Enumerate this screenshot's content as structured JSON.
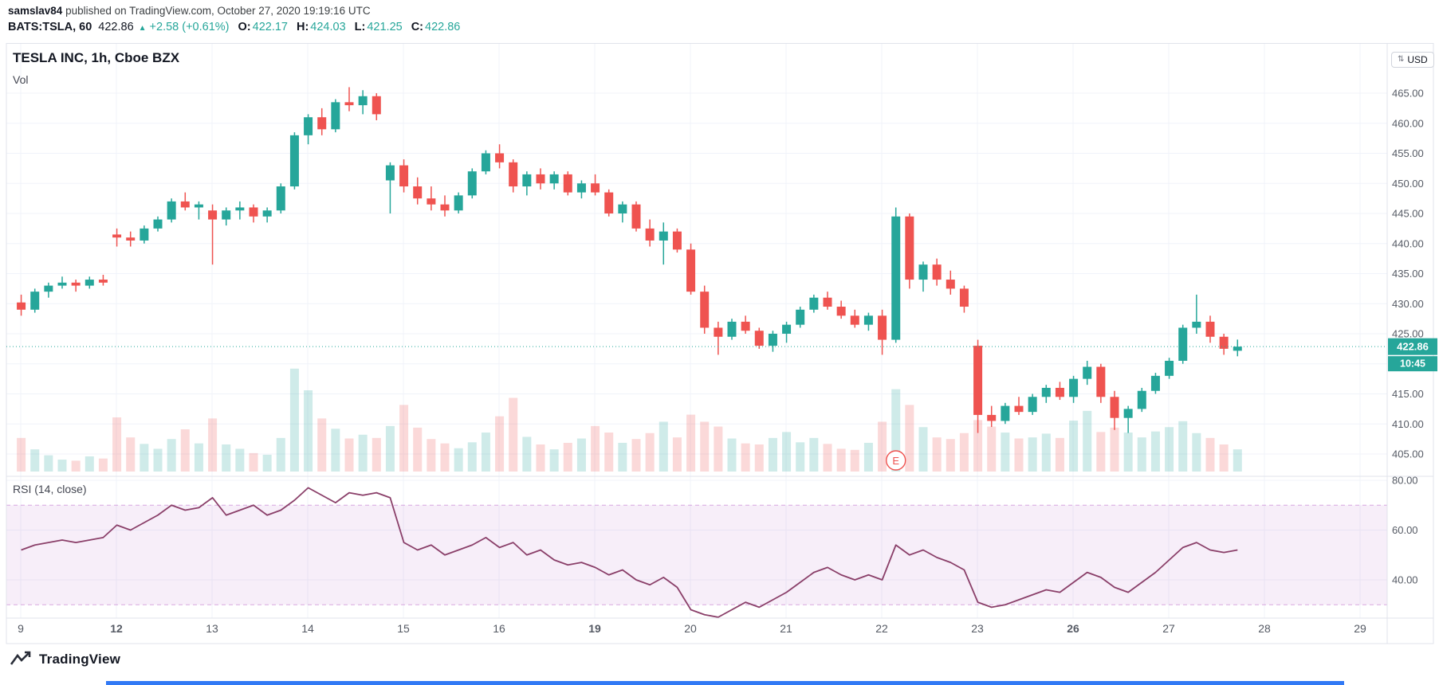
{
  "header": {
    "publisher": "samslav84",
    "published_text": "published on TradingView.com, October 27, 2020 19:19:16 UTC",
    "symbol": "BATS:TSLA, 60",
    "last": "422.86",
    "direction_icon": "▲",
    "change": "+2.58 (+0.61%)",
    "ohlc": [
      {
        "label": "O:",
        "value": "422.17"
      },
      {
        "label": "H:",
        "value": "424.03"
      },
      {
        "label": "L:",
        "value": "421.25"
      },
      {
        "label": "C:",
        "value": "422.86"
      }
    ]
  },
  "legend": {
    "volume_label": "Vol"
  },
  "axis": {
    "currency": "USD"
  },
  "footer": {
    "brand": "TradingView"
  },
  "colors": {
    "up": "#26a69a",
    "down": "#ef5350",
    "vol_up": "rgba(38,166,154,0.22)",
    "vol_down": "rgba(239,83,80,0.22)",
    "grid": "#f0f3fa",
    "border": "#e0e3eb",
    "axis_text": "#555a64",
    "rsi_line": "#8a3f69",
    "rsi_band_fill": "rgba(156,39,176,0.08)",
    "rsi_band_line": "rgba(186,104,200,0.55)",
    "accent_blue": "#3179f5",
    "text": "#131722"
  },
  "chart_data": {
    "type": "candlestick",
    "title": "TESLA INC, 1h, Cboe BZX",
    "symbol": "TSLA",
    "interval": "1h",
    "exchange": "Cboe BZX",
    "price_axis": {
      "min": 405,
      "max": 465,
      "step": 5,
      "unit": "USD"
    },
    "time_axis": {
      "dates": [
        "9",
        "12",
        "13",
        "14",
        "15",
        "16",
        "19",
        "20",
        "21",
        "22",
        "23",
        "26",
        "27",
        "28",
        "29"
      ],
      "bold_dates": [
        "12",
        "19",
        "26"
      ],
      "bars_per_day": 7,
      "trading_days": 13
    },
    "last_price": 422.86,
    "last_bar_ohlc": {
      "o": 422.17,
      "h": 424.03,
      "l": 421.25,
      "c": 422.86
    },
    "countdown": "10:45",
    "earnings_marker": {
      "bar_index": 64,
      "label": "E"
    },
    "candles_ohlc": [
      [
        430.2,
        431.5,
        428.0,
        429.0
      ],
      [
        429.0,
        432.5,
        428.5,
        432.0
      ],
      [
        432.0,
        433.5,
        431.0,
        433.0
      ],
      [
        433.0,
        434.5,
        432.5,
        433.5
      ],
      [
        433.5,
        434.0,
        432.0,
        433.0
      ],
      [
        433.0,
        434.5,
        432.5,
        434.0
      ],
      [
        434.0,
        434.8,
        433.0,
        433.5
      ],
      [
        441.5,
        442.5,
        439.5,
        441.0
      ],
      [
        441.0,
        442.0,
        439.5,
        440.5
      ],
      [
        440.5,
        443.0,
        440.0,
        442.5
      ],
      [
        442.5,
        444.5,
        442.0,
        444.0
      ],
      [
        444.0,
        447.5,
        443.5,
        447.0
      ],
      [
        447.0,
        448.5,
        445.5,
        446.0
      ],
      [
        446.0,
        447.0,
        444.0,
        446.5
      ],
      [
        445.5,
        446.5,
        436.5,
        444.0
      ],
      [
        444.0,
        446.0,
        443.0,
        445.5
      ],
      [
        445.5,
        447.0,
        444.0,
        446.0
      ],
      [
        446.0,
        446.5,
        443.5,
        444.5
      ],
      [
        444.5,
        446.0,
        443.5,
        445.5
      ],
      [
        445.5,
        450.0,
        445.0,
        449.5
      ],
      [
        449.5,
        458.5,
        449.0,
        458.0
      ],
      [
        458.0,
        461.5,
        456.5,
        461.0
      ],
      [
        461.0,
        462.5,
        458.0,
        459.0
      ],
      [
        459.0,
        464.0,
        458.5,
        463.5
      ],
      [
        463.5,
        466.0,
        462.0,
        463.0
      ],
      [
        463.0,
        465.5,
        461.5,
        464.5
      ],
      [
        464.5,
        465.0,
        460.5,
        461.5
      ],
      [
        450.5,
        453.5,
        445.0,
        453.0
      ],
      [
        453.0,
        454.0,
        448.5,
        449.5
      ],
      [
        449.5,
        451.0,
        446.5,
        447.5
      ],
      [
        447.5,
        449.5,
        445.5,
        446.5
      ],
      [
        446.5,
        448.0,
        444.5,
        445.5
      ],
      [
        445.5,
        448.5,
        445.0,
        448.0
      ],
      [
        448.0,
        452.5,
        447.5,
        452.0
      ],
      [
        452.0,
        455.5,
        451.5,
        455.0
      ],
      [
        455.0,
        456.5,
        452.5,
        453.5
      ],
      [
        453.5,
        454.0,
        448.5,
        449.5
      ],
      [
        449.5,
        452.0,
        448.0,
        451.5
      ],
      [
        451.5,
        452.5,
        449.0,
        450.0
      ],
      [
        450.0,
        452.0,
        449.0,
        451.5
      ],
      [
        451.5,
        452.0,
        448.0,
        448.5
      ],
      [
        448.5,
        450.5,
        447.5,
        450.0
      ],
      [
        450.0,
        451.5,
        448.0,
        448.5
      ],
      [
        448.5,
        449.0,
        444.5,
        445.0
      ],
      [
        445.0,
        447.0,
        443.5,
        446.5
      ],
      [
        446.5,
        447.0,
        442.0,
        442.5
      ],
      [
        442.5,
        444.0,
        439.5,
        440.5
      ],
      [
        440.5,
        443.5,
        436.5,
        442.0
      ],
      [
        442.0,
        442.5,
        438.5,
        439.0
      ],
      [
        439.0,
        440.0,
        431.5,
        432.0
      ],
      [
        432.0,
        433.0,
        425.0,
        426.0
      ],
      [
        426.0,
        427.0,
        421.5,
        424.5
      ],
      [
        424.5,
        427.5,
        424.0,
        427.0
      ],
      [
        427.0,
        428.0,
        425.0,
        425.5
      ],
      [
        425.5,
        426.0,
        422.5,
        423.0
      ],
      [
        423.0,
        425.5,
        422.0,
        425.0
      ],
      [
        425.0,
        427.0,
        423.5,
        426.5
      ],
      [
        426.5,
        429.5,
        426.0,
        429.0
      ],
      [
        429.0,
        431.5,
        428.5,
        431.0
      ],
      [
        431.0,
        432.0,
        429.0,
        429.5
      ],
      [
        429.5,
        430.5,
        427.5,
        428.0
      ],
      [
        428.0,
        429.0,
        426.0,
        426.5
      ],
      [
        426.5,
        428.5,
        425.5,
        428.0
      ],
      [
        428.0,
        429.0,
        421.5,
        424.0
      ],
      [
        424.0,
        446.0,
        423.5,
        444.5
      ],
      [
        444.5,
        445.0,
        432.5,
        434.0
      ],
      [
        434.0,
        437.0,
        432.0,
        436.5
      ],
      [
        436.5,
        437.5,
        433.0,
        434.0
      ],
      [
        434.0,
        435.5,
        431.5,
        432.5
      ],
      [
        432.5,
        433.0,
        428.5,
        429.5
      ],
      [
        423.0,
        424.0,
        408.5,
        411.5
      ],
      [
        411.5,
        413.0,
        409.5,
        410.5
      ],
      [
        410.5,
        413.5,
        410.0,
        413.0
      ],
      [
        413.0,
        414.5,
        411.5,
        412.0
      ],
      [
        412.0,
        415.0,
        411.5,
        414.5
      ],
      [
        414.5,
        416.5,
        413.5,
        416.0
      ],
      [
        416.0,
        417.0,
        414.0,
        414.5
      ],
      [
        414.5,
        418.0,
        413.5,
        417.5
      ],
      [
        417.5,
        420.5,
        416.5,
        419.5
      ],
      [
        419.5,
        420.0,
        413.5,
        414.5
      ],
      [
        414.5,
        415.5,
        409.0,
        411.0
      ],
      [
        411.0,
        413.0,
        408.5,
        412.5
      ],
      [
        412.5,
        416.0,
        412.0,
        415.5
      ],
      [
        415.5,
        418.5,
        415.0,
        418.0
      ],
      [
        418.0,
        421.0,
        417.5,
        420.5
      ],
      [
        420.5,
        426.5,
        420.0,
        426.0
      ],
      [
        426.0,
        431.5,
        425.0,
        427.0
      ],
      [
        427.0,
        428.0,
        423.5,
        424.5
      ],
      [
        424.5,
        425.0,
        421.5,
        422.5
      ],
      [
        422.17,
        424.03,
        421.25,
        422.86
      ]
    ],
    "volume": [
      6.2,
      4.1,
      3.0,
      2.2,
      2.0,
      2.8,
      2.4,
      10.0,
      6.3,
      5.1,
      4.2,
      6.0,
      7.8,
      5.2,
      9.8,
      5.0,
      4.2,
      3.4,
      3.1,
      6.2,
      19.0,
      15.0,
      9.8,
      7.9,
      6.1,
      6.8,
      6.2,
      8.4,
      12.3,
      8.1,
      6.0,
      5.2,
      4.3,
      5.4,
      7.2,
      10.2,
      13.6,
      6.4,
      5.0,
      4.1,
      5.3,
      6.1,
      8.4,
      7.2,
      5.3,
      6.0,
      7.1,
      9.2,
      6.3,
      10.5,
      9.2,
      8.3,
      6.1,
      5.2,
      5.0,
      6.2,
      7.3,
      5.4,
      6.2,
      5.1,
      4.2,
      4.0,
      5.3,
      9.2,
      15.2,
      12.3,
      8.2,
      6.3,
      6.0,
      7.1,
      9.5,
      8.3,
      7.2,
      6.1,
      6.3,
      7.0,
      6.2,
      9.4,
      11.2,
      7.3,
      8.1,
      7.2,
      6.3,
      7.4,
      8.2,
      9.3,
      7.1,
      6.2,
      5.0,
      4.1
    ],
    "rsi": {
      "label": "RSI (14, close)",
      "period": 14,
      "source": "close",
      "ticks": [
        80,
        60,
        40
      ],
      "upper_band": 70,
      "lower_band": 30,
      "values": [
        52,
        54,
        55,
        56,
        55,
        56,
        57,
        62,
        60,
        63,
        66,
        70,
        68,
        69,
        73,
        66,
        68,
        70,
        66,
        68,
        72,
        77,
        74,
        71,
        75,
        74,
        75,
        73,
        55,
        52,
        54,
        50,
        52,
        54,
        57,
        53,
        55,
        50,
        52,
        48,
        46,
        47,
        45,
        42,
        44,
        40,
        38,
        41,
        37,
        28,
        26,
        25,
        28,
        31,
        29,
        32,
        35,
        39,
        43,
        45,
        42,
        40,
        42,
        40,
        54,
        50,
        52,
        49,
        47,
        44,
        31,
        29,
        30,
        32,
        34,
        36,
        35,
        39,
        43,
        41,
        37,
        35,
        39,
        43,
        48,
        53,
        55,
        52,
        51,
        52
      ]
    }
  }
}
